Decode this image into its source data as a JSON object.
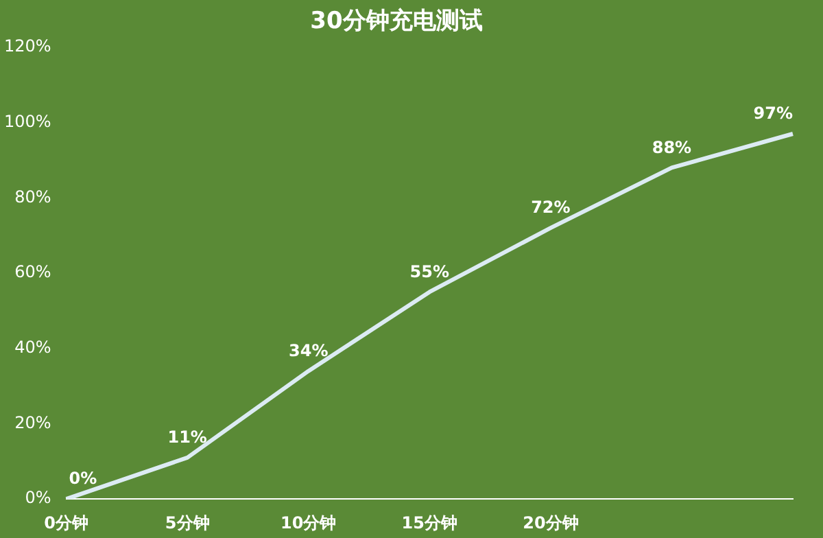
{
  "chart_data": {
    "type": "line",
    "title": "30分钟充电测试",
    "categories": [
      "0分钟",
      "5分钟",
      "10分钟",
      "15分钟",
      "20分钟",
      null,
      null
    ],
    "values": [
      0,
      11,
      34,
      55,
      72,
      88,
      97
    ],
    "value_labels": [
      "0%",
      "11%",
      "34%",
      "55%",
      "72%",
      "88%",
      "97%"
    ],
    "color": "#dcebf3",
    "ylim": [
      0,
      120
    ],
    "yticks": [
      {
        "value": 0,
        "label": "0%"
      },
      {
        "value": 20,
        "label": "20%"
      },
      {
        "value": 40,
        "label": "40%"
      },
      {
        "value": 60,
        "label": "60%"
      },
      {
        "value": 80,
        "label": "80%"
      },
      {
        "value": 100,
        "label": "100%"
      },
      {
        "value": 120,
        "label": "120%"
      }
    ],
    "grid": false,
    "legend": false,
    "marker": "none",
    "line_style": "solid"
  }
}
